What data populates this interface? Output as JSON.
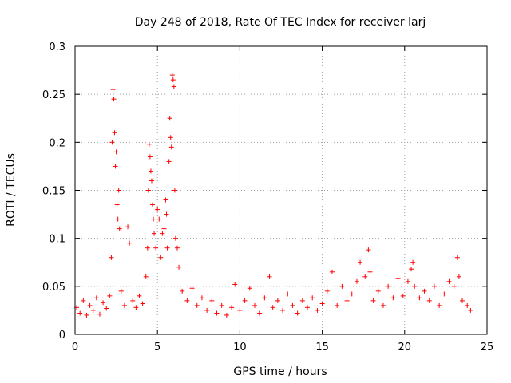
{
  "chart_data": {
    "type": "scatter",
    "title": "Day 248 of 2018, Rate Of TEC Index for receiver larj",
    "xlabel": "GPS time / hours",
    "ylabel": "ROTI / TECUs",
    "xlim": [
      0,
      25
    ],
    "ylim": [
      0,
      0.3
    ],
    "xticks": [
      0,
      5,
      10,
      15,
      20,
      25
    ],
    "xtick_labels": [
      "0",
      "5",
      "10",
      "15",
      "20",
      "25"
    ],
    "yticks": [
      0,
      0.05,
      0.1,
      0.15,
      0.2,
      0.25,
      0.3
    ],
    "ytick_labels": [
      "0",
      "0.05",
      "0.1",
      "0.15",
      "0.2",
      "0.25",
      "0.3"
    ],
    "grid": true,
    "marker": "+",
    "series_color": "#ff0000",
    "series": [
      {
        "name": "ROTI",
        "points": [
          [
            0.1,
            0.028
          ],
          [
            0.3,
            0.022
          ],
          [
            0.5,
            0.035
          ],
          [
            0.7,
            0.02
          ],
          [
            0.9,
            0.03
          ],
          [
            1.1,
            0.025
          ],
          [
            1.3,
            0.038
          ],
          [
            1.5,
            0.021
          ],
          [
            1.7,
            0.033
          ],
          [
            1.9,
            0.027
          ],
          [
            2.1,
            0.04
          ],
          [
            2.2,
            0.08
          ],
          [
            2.25,
            0.2
          ],
          [
            2.3,
            0.255
          ],
          [
            2.35,
            0.245
          ],
          [
            2.4,
            0.21
          ],
          [
            2.45,
            0.175
          ],
          [
            2.5,
            0.19
          ],
          [
            2.55,
            0.135
          ],
          [
            2.6,
            0.12
          ],
          [
            2.65,
            0.15
          ],
          [
            2.7,
            0.11
          ],
          [
            2.8,
            0.045
          ],
          [
            3.0,
            0.03
          ],
          [
            3.2,
            0.112
          ],
          [
            3.3,
            0.095
          ],
          [
            3.5,
            0.035
          ],
          [
            3.7,
            0.028
          ],
          [
            3.9,
            0.04
          ],
          [
            4.1,
            0.032
          ],
          [
            4.3,
            0.06
          ],
          [
            4.4,
            0.09
          ],
          [
            4.45,
            0.15
          ],
          [
            4.5,
            0.198
          ],
          [
            4.55,
            0.185
          ],
          [
            4.6,
            0.17
          ],
          [
            4.65,
            0.16
          ],
          [
            4.7,
            0.135
          ],
          [
            4.75,
            0.12
          ],
          [
            4.8,
            0.105
          ],
          [
            4.9,
            0.09
          ],
          [
            5.0,
            0.13
          ],
          [
            5.1,
            0.12
          ],
          [
            5.2,
            0.08
          ],
          [
            5.3,
            0.105
          ],
          [
            5.4,
            0.11
          ],
          [
            5.5,
            0.14
          ],
          [
            5.55,
            0.125
          ],
          [
            5.6,
            0.09
          ],
          [
            5.7,
            0.18
          ],
          [
            5.75,
            0.225
          ],
          [
            5.8,
            0.205
          ],
          [
            5.85,
            0.195
          ],
          [
            5.9,
            0.27
          ],
          [
            5.95,
            0.265
          ],
          [
            6.0,
            0.258
          ],
          [
            6.05,
            0.15
          ],
          [
            6.1,
            0.1
          ],
          [
            6.2,
            0.09
          ],
          [
            6.3,
            0.07
          ],
          [
            6.5,
            0.045
          ],
          [
            6.8,
            0.035
          ],
          [
            7.1,
            0.048
          ],
          [
            7.4,
            0.03
          ],
          [
            7.7,
            0.038
          ],
          [
            8.0,
            0.025
          ],
          [
            8.3,
            0.035
          ],
          [
            8.6,
            0.022
          ],
          [
            8.9,
            0.03
          ],
          [
            9.2,
            0.02
          ],
          [
            9.5,
            0.028
          ],
          [
            9.7,
            0.052
          ],
          [
            10.0,
            0.025
          ],
          [
            10.3,
            0.035
          ],
          [
            10.6,
            0.048
          ],
          [
            10.9,
            0.03
          ],
          [
            11.2,
            0.022
          ],
          [
            11.5,
            0.038
          ],
          [
            11.8,
            0.06
          ],
          [
            12.0,
            0.028
          ],
          [
            12.3,
            0.035
          ],
          [
            12.6,
            0.025
          ],
          [
            12.9,
            0.042
          ],
          [
            13.2,
            0.03
          ],
          [
            13.5,
            0.022
          ],
          [
            13.8,
            0.035
          ],
          [
            14.1,
            0.028
          ],
          [
            14.4,
            0.038
          ],
          [
            14.7,
            0.025
          ],
          [
            15.0,
            0.032
          ],
          [
            15.3,
            0.045
          ],
          [
            15.6,
            0.065
          ],
          [
            15.9,
            0.03
          ],
          [
            16.2,
            0.05
          ],
          [
            16.5,
            0.035
          ],
          [
            16.8,
            0.042
          ],
          [
            17.1,
            0.055
          ],
          [
            17.3,
            0.075
          ],
          [
            17.6,
            0.06
          ],
          [
            17.8,
            0.088
          ],
          [
            17.9,
            0.065
          ],
          [
            18.1,
            0.035
          ],
          [
            18.4,
            0.045
          ],
          [
            18.7,
            0.03
          ],
          [
            19.0,
            0.05
          ],
          [
            19.3,
            0.038
          ],
          [
            19.6,
            0.058
          ],
          [
            19.9,
            0.04
          ],
          [
            20.2,
            0.055
          ],
          [
            20.4,
            0.068
          ],
          [
            20.5,
            0.075
          ],
          [
            20.6,
            0.05
          ],
          [
            20.9,
            0.038
          ],
          [
            21.2,
            0.045
          ],
          [
            21.5,
            0.035
          ],
          [
            21.8,
            0.05
          ],
          [
            22.1,
            0.03
          ],
          [
            22.4,
            0.042
          ],
          [
            22.7,
            0.055
          ],
          [
            23.0,
            0.05
          ],
          [
            23.2,
            0.08
          ],
          [
            23.3,
            0.06
          ],
          [
            23.5,
            0.035
          ],
          [
            23.8,
            0.03
          ],
          [
            24.0,
            0.025
          ]
        ]
      }
    ]
  }
}
